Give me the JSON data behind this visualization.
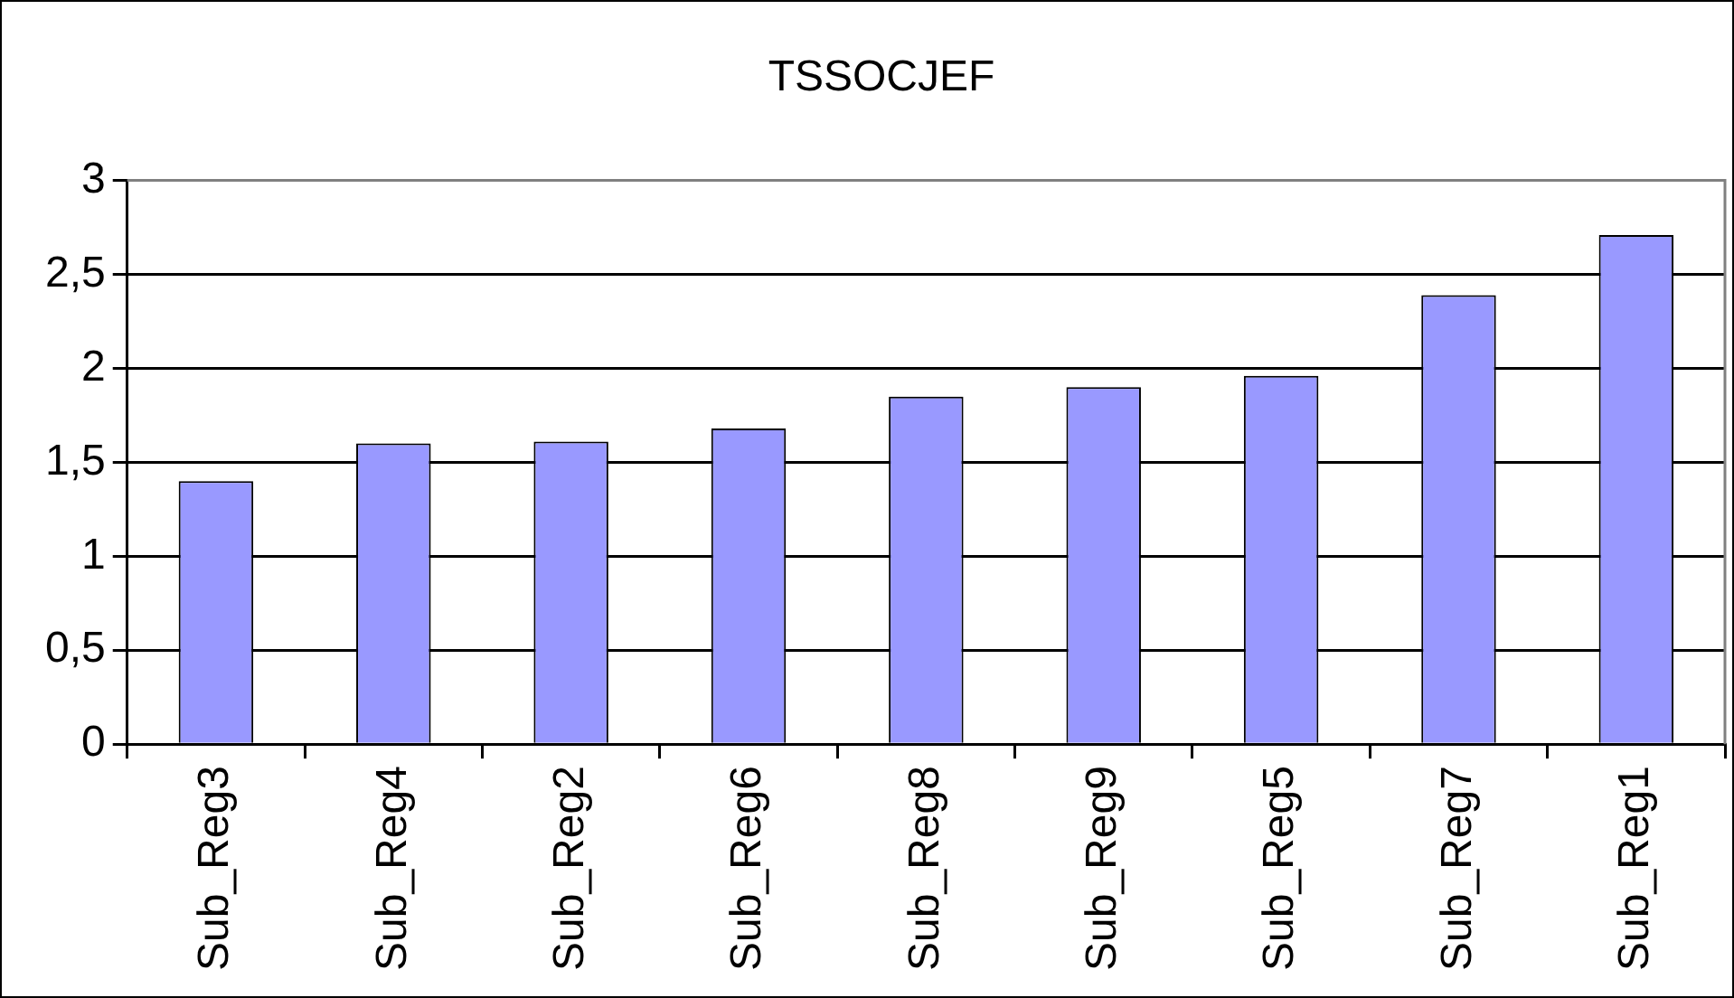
{
  "chart_data": {
    "type": "bar",
    "title": "TSSOCJEF",
    "categories": [
      "Sub_Reg3",
      "Sub_Reg4",
      "Sub_Reg2",
      "Sub_Reg6",
      "Sub_Reg8",
      "Sub_Reg9",
      "Sub_Reg5",
      "Sub_Reg7",
      "Sub_Reg1"
    ],
    "values": [
      1.4,
      1.6,
      1.61,
      1.68,
      1.85,
      1.9,
      1.96,
      2.39,
      2.71
    ],
    "color": "#9999ff",
    "ylim": [
      0,
      3
    ],
    "yticks": [
      0,
      {
        "value": 0.5,
        "label": "0,5"
      },
      1,
      {
        "value": 1.5,
        "label": "1,5"
      },
      2,
      {
        "value": 2.5,
        "label": "2,5"
      },
      3
    ],
    "grid": "y",
    "legend": false
  }
}
